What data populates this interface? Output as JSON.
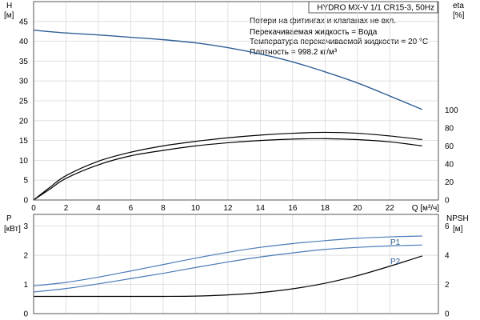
{
  "chart_data": {
    "title": "HYDRO MX-V 1/1 CR15-3, 50Hz",
    "notes": [
      "Потери на фитингах и клапанах не вкл.",
      "Перекачиваемая жидкость = Вода",
      "Температура перекачиваемой жидкости = 20 °C",
      "Плотность = 998.2 кг/м³"
    ],
    "colors": {
      "head": "#2f5f95",
      "eta": "#000000",
      "power": "#4a7ab8",
      "npsh": "#000000",
      "grid": "#d9d9d9"
    },
    "x_axis": {
      "label": "Q [м³/ч]",
      "range": [
        0,
        25
      ],
      "ticks": [
        0,
        2,
        4,
        6,
        8,
        10,
        12,
        14,
        16,
        18,
        20,
        22
      ]
    },
    "top_panel": {
      "type": "line",
      "left_axis": {
        "label_line1": "H",
        "label_line2": "[м]",
        "range": [
          0,
          50
        ],
        "ticks": [
          0,
          5,
          10,
          15,
          20,
          25,
          30,
          35,
          40,
          45
        ]
      },
      "right_axis": {
        "label_line1": "eta",
        "label_line2": "[%]",
        "range": [
          0,
          220
        ],
        "ticks": [
          0,
          20,
          40,
          60,
          80,
          100
        ]
      },
      "series": [
        {
          "axis": "left",
          "x": [
            0,
            2,
            4,
            6,
            8,
            10,
            12,
            14,
            16,
            18,
            20,
            22,
            24
          ],
          "y": [
            42.8,
            42.1,
            41.6,
            41.0,
            40.4,
            39.6,
            38.4,
            36.8,
            34.8,
            32.3,
            29.5,
            26.2,
            22.8
          ]
        },
        {
          "axis": "right",
          "x": [
            0,
            1,
            2,
            4,
            6,
            8,
            10,
            12,
            14,
            16,
            18,
            20,
            22,
            24
          ],
          "y": [
            0,
            12,
            24,
            39,
            49,
            55,
            60,
            63.5,
            66,
            67.5,
            68,
            67,
            64.5,
            60
          ]
        },
        {
          "axis": "right",
          "x": [
            0,
            1,
            2,
            4,
            6,
            8,
            10,
            12,
            14,
            16,
            18,
            20,
            22,
            24
          ],
          "y": [
            0,
            14,
            27,
            43,
            53,
            60,
            65,
            69,
            72,
            74,
            75,
            74,
            71,
            67
          ]
        }
      ]
    },
    "bottom_panel": {
      "type": "line",
      "left_axis": {
        "label_line1": "P",
        "label_line2": "[кВт]",
        "range": [
          0,
          3.4
        ],
        "ticks": [
          0,
          1,
          2,
          3
        ]
      },
      "right_axis": {
        "label_line1": "NPSH",
        "label_line2": "[м]",
        "range": [
          0,
          6.8
        ],
        "ticks": [
          0,
          2,
          4,
          6
        ]
      },
      "series": [
        {
          "name": "P1",
          "axis": "left",
          "x": [
            0,
            2,
            4,
            6,
            8,
            10,
            12,
            14,
            16,
            18,
            20,
            22,
            24
          ],
          "y": [
            0.95,
            1.07,
            1.25,
            1.46,
            1.68,
            1.9,
            2.1,
            2.27,
            2.4,
            2.5,
            2.58,
            2.63,
            2.66
          ]
        },
        {
          "name": "P2",
          "axis": "left",
          "x": [
            0,
            2,
            4,
            6,
            8,
            10,
            12,
            14,
            16,
            18,
            20,
            22,
            24
          ],
          "y": [
            0.74,
            0.86,
            1.02,
            1.2,
            1.38,
            1.58,
            1.77,
            1.94,
            2.08,
            2.2,
            2.27,
            2.32,
            2.35
          ]
        },
        {
          "axis": "right",
          "x": [
            0,
            2,
            4,
            6,
            8,
            10,
            12,
            14,
            16,
            18,
            20,
            22,
            24
          ],
          "y": [
            1.18,
            1.18,
            1.18,
            1.18,
            1.18,
            1.2,
            1.28,
            1.44,
            1.7,
            2.08,
            2.6,
            3.25,
            3.95
          ]
        }
      ]
    }
  }
}
